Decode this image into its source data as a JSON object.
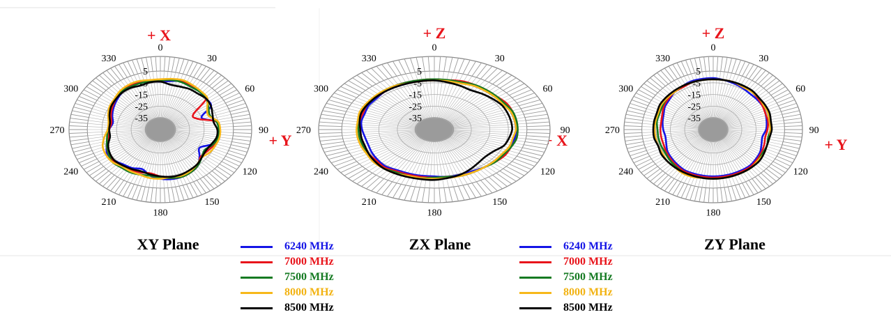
{
  "chart_data": [
    {
      "type": "polar",
      "title": "XY Plane",
      "axis_tags": {
        "top": "+ X",
        "right": "+ Y"
      },
      "angle_labels": [
        "0",
        "30",
        "60",
        "90",
        "120",
        "150",
        "180",
        "210",
        "240",
        "270",
        "300",
        "330"
      ],
      "radial_labels": [
        "5",
        "-5",
        "-15",
        "-25",
        "-35"
      ],
      "rlim": [
        -45,
        5
      ],
      "series": [
        {
          "name": "6240 MHz",
          "color": "#1414e6",
          "r": [
            -4,
            -3,
            -1,
            -2,
            -3,
            -4,
            -5,
            -15,
            -6,
            -5,
            -5,
            -8,
            -14,
            -10,
            -5,
            -3,
            -2,
            -2,
            -3,
            -5,
            -9,
            -7,
            -6,
            -4,
            -3,
            -6,
            -9,
            -10,
            -12,
            -10,
            -8,
            -6,
            -4,
            -3,
            -2,
            -3
          ]
        },
        {
          "name": "7000 MHz",
          "color": "#e8141b",
          "r": [
            -3,
            -2,
            -1,
            -2,
            -3,
            -4,
            -19,
            -18,
            -6,
            -5,
            -4,
            -6,
            -8,
            -9,
            -5,
            -3,
            -2,
            -3,
            -5,
            -7,
            -6,
            -5,
            -3,
            -3,
            -4,
            -6,
            -9,
            -10,
            -11,
            -9,
            -7,
            -5,
            -3,
            -2,
            -2,
            -3
          ]
        },
        {
          "name": "7500 MHz",
          "color": "#157a22",
          "r": [
            -3,
            -2,
            -2,
            -3,
            -3,
            -4,
            -7,
            -9,
            -6,
            -5,
            -5,
            -7,
            -10,
            -8,
            -5,
            -3,
            -2,
            -3,
            -4,
            -5,
            -4,
            -3,
            -3,
            -2,
            -4,
            -6,
            -8,
            -9,
            -10,
            -8,
            -6,
            -5,
            -3,
            -3,
            -3,
            -3
          ]
        },
        {
          "name": "8000 MHz",
          "color": "#f7b81a",
          "r": [
            -2,
            -1,
            0,
            -1,
            -2,
            -3,
            -8,
            -10,
            -5,
            -4,
            -4,
            -5,
            -6,
            -8,
            -6,
            -4,
            -3,
            -4,
            -3,
            -3,
            -4,
            -4,
            -4,
            -2,
            -2,
            -3,
            -6,
            -9,
            -9,
            -7,
            -5,
            -4,
            -2,
            -1,
            -1,
            -2
          ]
        },
        {
          "name": "8500 MHz",
          "color": "#000000",
          "r": [
            -4,
            -6,
            -6,
            -5,
            -5,
            -4,
            -5,
            -7,
            -8,
            -6,
            -6,
            -8,
            -9,
            -8,
            -6,
            -5,
            -4,
            -4,
            -5,
            -6,
            -7,
            -6,
            -5,
            -4,
            -5,
            -7,
            -10,
            -10,
            -10,
            -8,
            -6,
            -5,
            -4,
            -4,
            -5,
            -4
          ]
        }
      ]
    },
    {
      "type": "polar",
      "title": "ZX Plane",
      "axis_tags": {
        "top": "+ Z",
        "right": "+ X"
      },
      "angle_labels": [
        "0",
        "30",
        "60",
        "90",
        "120",
        "150",
        "180",
        "210",
        "240",
        "270",
        "300",
        "330"
      ],
      "radial_labels": [
        "5",
        "-5",
        "-15",
        "-25",
        "-35"
      ],
      "rlim": [
        -45,
        5
      ],
      "series": [
        {
          "name": "6240 MHz",
          "color": "#1414e6",
          "r": [
            -3,
            -3,
            -2,
            -2,
            -2,
            -2,
            -1,
            -1,
            -1,
            -1,
            -1,
            -2,
            -2,
            -3,
            -3,
            -4,
            -4,
            -4,
            -5,
            -5,
            -5,
            -5,
            -4,
            -5,
            -6,
            -7,
            -7,
            -6,
            -5,
            -5,
            -4,
            -4,
            -3,
            -3,
            -3,
            -3
          ]
        },
        {
          "name": "7000 MHz",
          "color": "#e8141b",
          "r": [
            -2,
            -2,
            -1,
            -1,
            -1,
            -1,
            0,
            0,
            0,
            0,
            0,
            -1,
            -1,
            -2,
            -3,
            -3,
            -3,
            -4,
            -4,
            -4,
            -4,
            -4,
            -3,
            -4,
            -4,
            -5,
            -5,
            -5,
            -4,
            -4,
            -3,
            -3,
            -3,
            -2,
            -2,
            -2
          ]
        },
        {
          "name": "7500 MHz",
          "color": "#157a22",
          "r": [
            -2,
            -2,
            -2,
            -1,
            -1,
            -1,
            -1,
            0,
            0,
            0,
            0,
            -1,
            -2,
            -2,
            -3,
            -3,
            -3,
            -4,
            -4,
            -3,
            -3,
            -3,
            -2,
            -3,
            -3,
            -4,
            -4,
            -4,
            -3,
            -3,
            -3,
            -3,
            -2,
            -2,
            -2,
            -2
          ]
        },
        {
          "name": "8000 MHz",
          "color": "#f7b81a",
          "r": [
            -3,
            -3,
            -3,
            -2,
            -2,
            -2,
            -2,
            -1,
            -1,
            -1,
            -2,
            -2,
            -3,
            -3,
            -3,
            -3,
            -3,
            -3,
            -3,
            -3,
            -3,
            -2,
            -2,
            -2,
            -3,
            -3,
            -3,
            -3,
            -3,
            -2,
            -2,
            -2,
            -2,
            -2,
            -3,
            -3
          ]
        },
        {
          "name": "8500 MHz",
          "color": "#000000",
          "r": [
            -3,
            -4,
            -5,
            -6,
            -5,
            -4,
            -3,
            -3,
            -3,
            -3,
            -4,
            -5,
            -8,
            -9,
            -8,
            -6,
            -4,
            -3,
            -2,
            -2,
            -2,
            -2,
            -2,
            -3,
            -4,
            -5,
            -5,
            -5,
            -4,
            -3,
            -3,
            -3,
            -3,
            -3,
            -3,
            -3
          ]
        }
      ]
    },
    {
      "type": "polar",
      "title": "ZY Plane",
      "axis_tags": {
        "top": "+ Z",
        "right": "+ Y"
      },
      "angle_labels": [
        "0",
        "30",
        "60",
        "90",
        "120",
        "150",
        "180",
        "210",
        "240",
        "270",
        "300",
        "330"
      ],
      "radial_labels": [
        "5",
        "-5",
        "-15",
        "-25",
        "-35"
      ],
      "rlim": [
        -45,
        5
      ],
      "series": [
        {
          "name": "6240 MHz",
          "color": "#1414e6",
          "r": [
            -1,
            -2,
            -3,
            -4,
            -5,
            -5,
            -5,
            -6,
            -7,
            -8,
            -10,
            -9,
            -7,
            -6,
            -5,
            -5,
            -5,
            -5,
            -5,
            -5,
            -5,
            -5,
            -6,
            -7,
            -8,
            -10,
            -11,
            -10,
            -9,
            -8,
            -6,
            -5,
            -3,
            -2,
            -1,
            -1
          ]
        },
        {
          "name": "7000 MHz",
          "color": "#e8141b",
          "r": [
            -2,
            -2,
            -2,
            -3,
            -3,
            -4,
            -5,
            -6,
            -6,
            -7,
            -8,
            -7,
            -6,
            -5,
            -4,
            -4,
            -4,
            -4,
            -4,
            -4,
            -4,
            -4,
            -5,
            -6,
            -7,
            -8,
            -8,
            -8,
            -8,
            -7,
            -5,
            -4,
            -3,
            -3,
            -2,
            -2
          ]
        },
        {
          "name": "7500 MHz",
          "color": "#157a22",
          "r": [
            -2,
            -2,
            -2,
            -2,
            -3,
            -3,
            -4,
            -4,
            -5,
            -5,
            -6,
            -5,
            -5,
            -4,
            -3,
            -3,
            -3,
            -3,
            -3,
            -3,
            -3,
            -3,
            -4,
            -5,
            -6,
            -6,
            -6,
            -6,
            -5,
            -5,
            -4,
            -3,
            -3,
            -2,
            -2,
            -2
          ]
        },
        {
          "name": "8000 MHz",
          "color": "#f7b81a",
          "r": [
            -2,
            -2,
            -2,
            -3,
            -3,
            -3,
            -4,
            -4,
            -5,
            -5,
            -5,
            -5,
            -4,
            -4,
            -3,
            -3,
            -3,
            -3,
            -3,
            -3,
            -2,
            -2,
            -3,
            -3,
            -4,
            -4,
            -4,
            -4,
            -4,
            -4,
            -3,
            -3,
            -3,
            -2,
            -2,
            -2
          ]
        },
        {
          "name": "8500 MHz",
          "color": "#000000",
          "r": [
            -2,
            -2,
            -2,
            -2,
            -2,
            -3,
            -3,
            -3,
            -4,
            -4,
            -5,
            -5,
            -4,
            -3,
            -3,
            -3,
            -3,
            -3,
            -3,
            -3,
            -3,
            -3,
            -3,
            -3,
            -3,
            -4,
            -3,
            -3,
            -3,
            -3,
            -2,
            -2,
            -2,
            -2,
            -2,
            -2
          ]
        }
      ]
    }
  ],
  "legends": [
    {
      "items": [
        {
          "label": "6240 MHz",
          "color": "#1414e6"
        },
        {
          "label": "7000 MHz",
          "color": "#e8141b"
        },
        {
          "label": "7500 MHz",
          "color": "#157a22"
        },
        {
          "label": "8000 MHz",
          "color": "#f7b81a"
        },
        {
          "label": "8500 MHz",
          "color": "#000000"
        }
      ]
    },
    {
      "items": [
        {
          "label": "6240 MHz",
          "color": "#1414e6"
        },
        {
          "label": "7000 MHz",
          "color": "#e8141b"
        },
        {
          "label": "7500 MHz",
          "color": "#157a22"
        },
        {
          "label": "8000 MHz",
          "color": "#f7b81a"
        },
        {
          "label": "8500 MHz",
          "color": "#000000"
        }
      ]
    }
  ]
}
